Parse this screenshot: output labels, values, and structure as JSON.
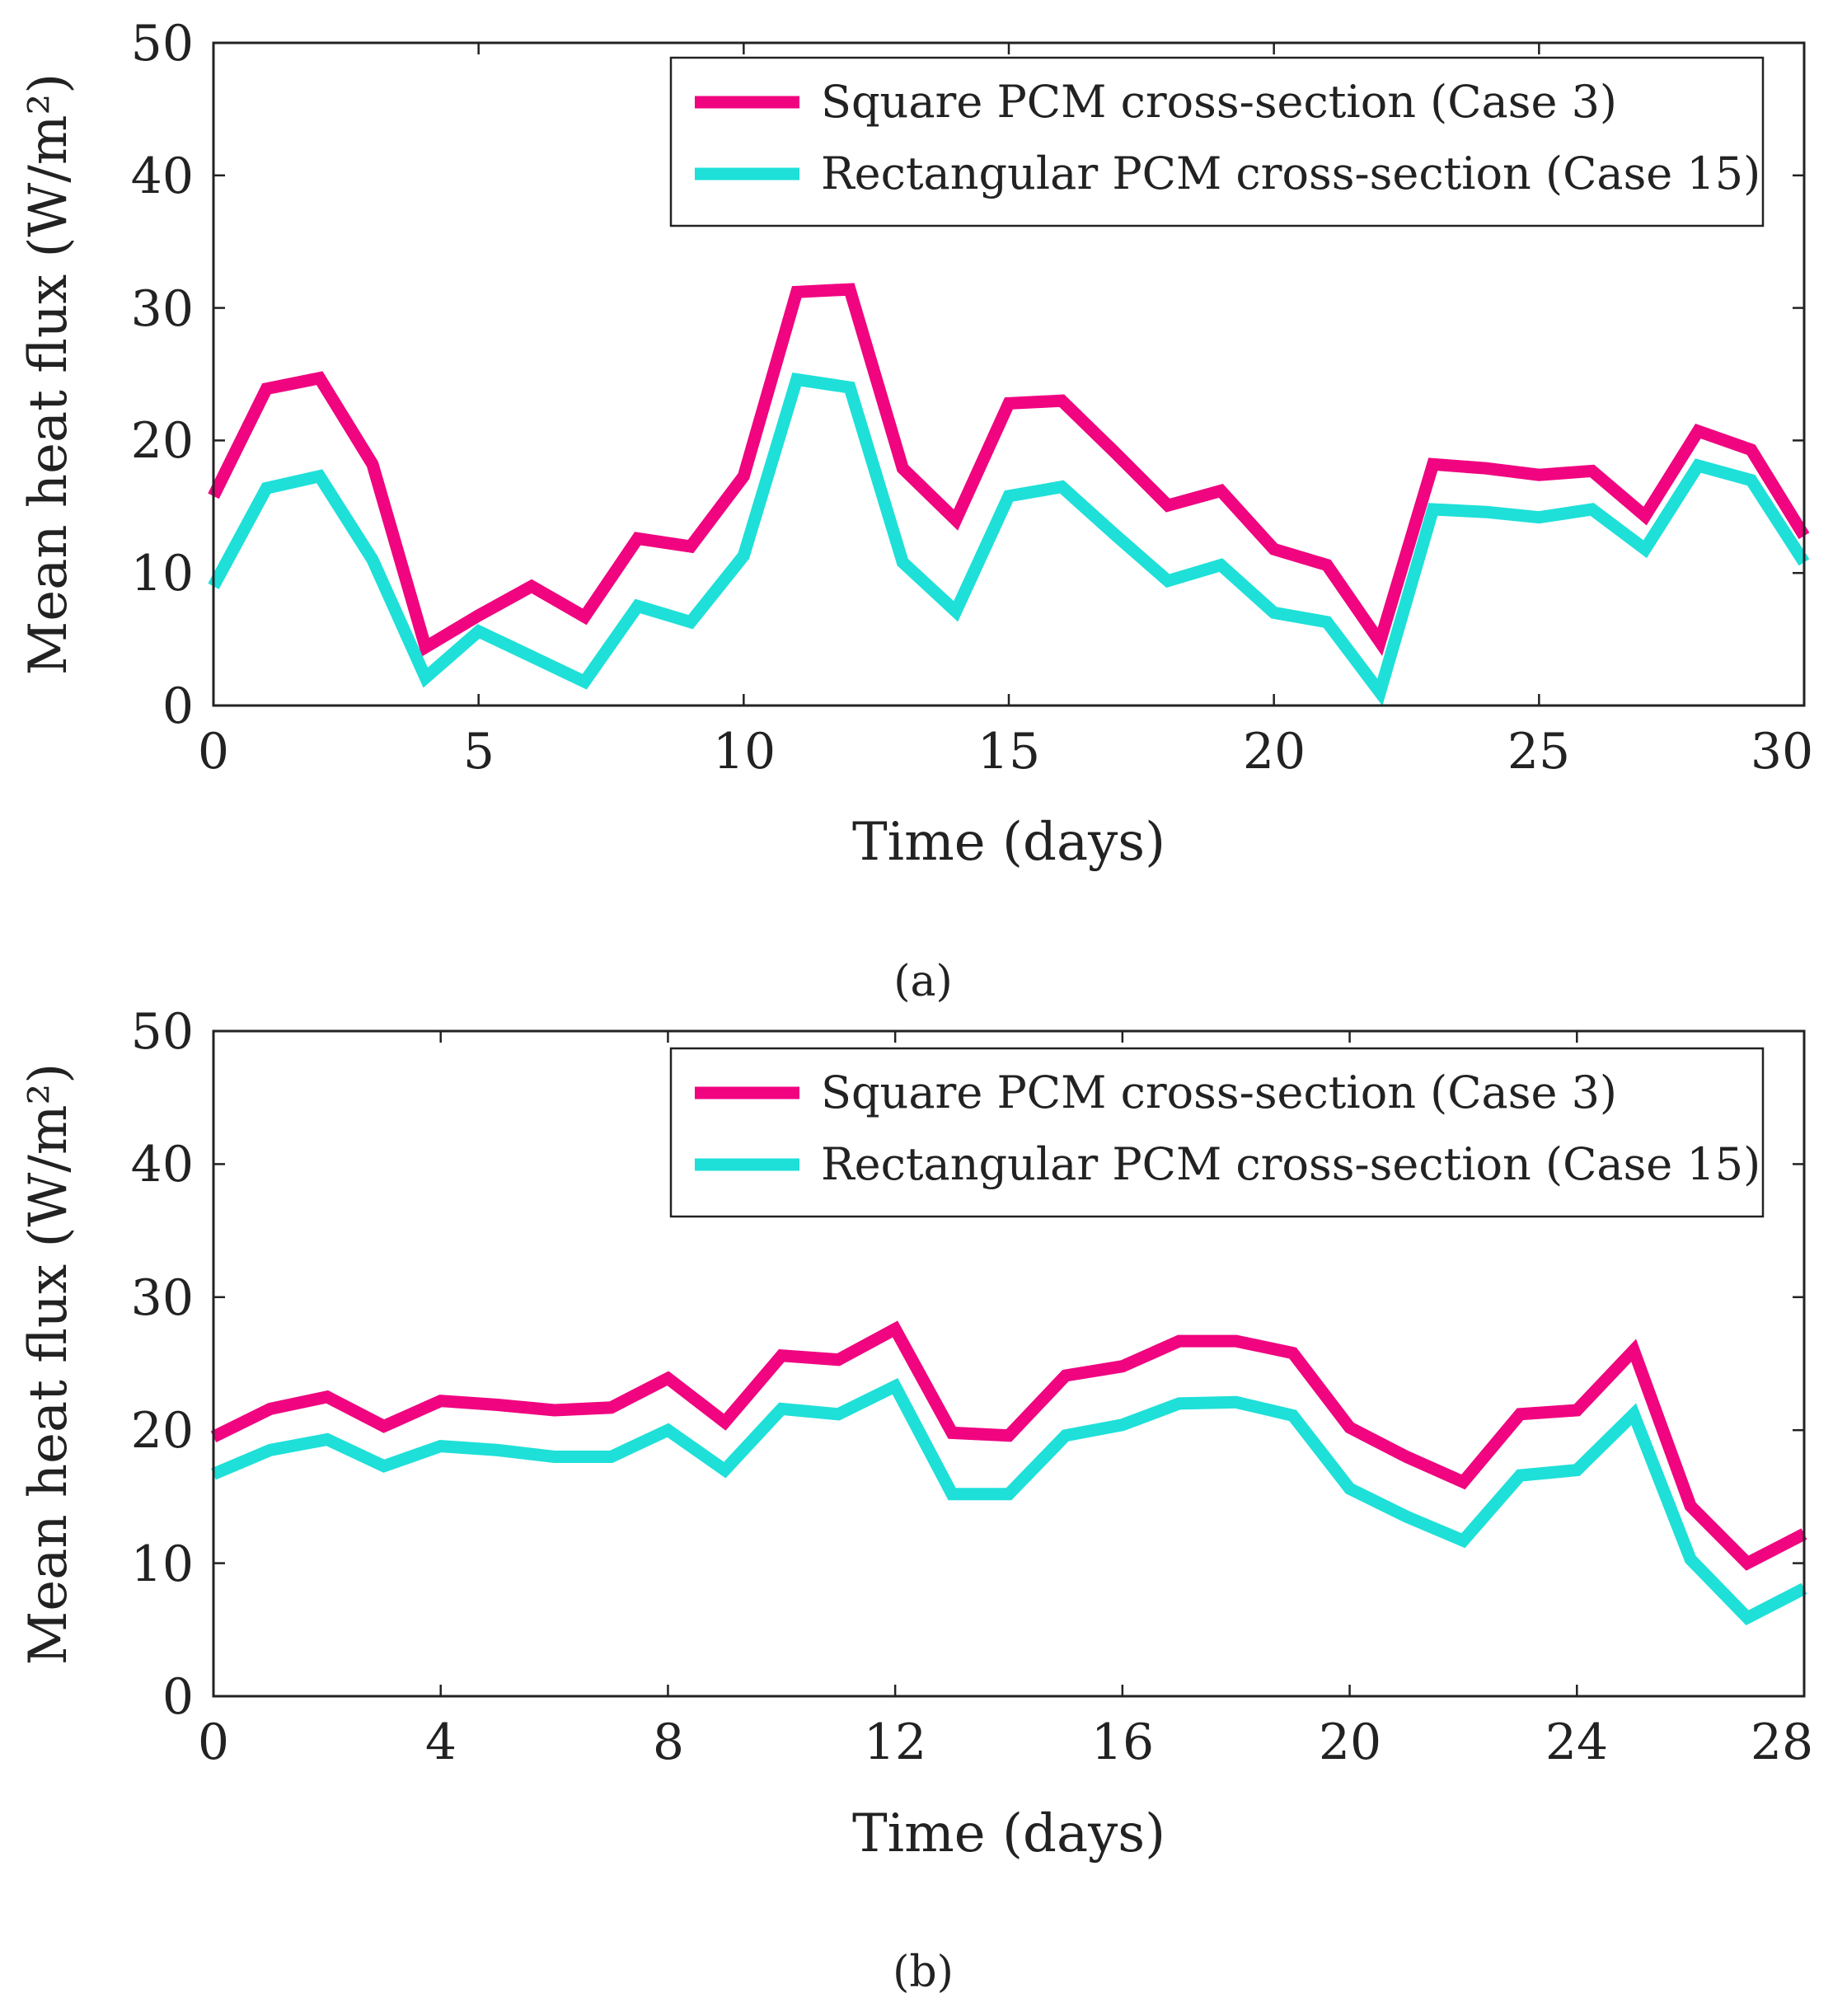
{
  "chart_data": [
    {
      "type": "line",
      "caption": "(a)",
      "xlabel": "Time (days)",
      "ylabel": "Mean heat flux (W/m²)",
      "xlim": [
        0,
        30
      ],
      "ylim": [
        0,
        50
      ],
      "xticks": [
        0,
        5,
        10,
        15,
        20,
        25,
        30
      ],
      "yticks": [
        0,
        10,
        20,
        30,
        40,
        50
      ],
      "xtick_labels": [
        "0",
        "5",
        "10",
        "15",
        "20",
        "25",
        "30"
      ],
      "ytick_labels": [
        "0",
        "10",
        "20",
        "30",
        "40",
        "50"
      ],
      "legend_position": "top-right",
      "x": [
        0,
        1,
        2,
        3,
        4,
        5,
        6,
        7,
        8,
        9,
        10,
        11,
        12,
        13,
        14,
        15,
        16,
        17,
        18,
        19,
        20,
        21,
        22,
        23,
        24,
        25,
        26,
        27,
        28,
        29,
        30
      ],
      "series": [
        {
          "name": "Square PCM cross-section (Case 3)",
          "color": "#f0047f",
          "values": [
            15.8,
            23.9,
            24.7,
            18.2,
            4.4,
            6.8,
            9.0,
            6.7,
            12.6,
            12.0,
            17.3,
            31.2,
            31.4,
            17.9,
            14.0,
            22.8,
            23.0,
            19.1,
            15.1,
            16.2,
            11.8,
            10.6,
            4.8,
            18.2,
            17.9,
            17.4,
            17.7,
            14.3,
            20.7,
            19.3,
            12.8
          ]
        },
        {
          "name": "Rectangular PCM cross-section (Case 15)",
          "color": "#1ee0d8",
          "values": [
            9.0,
            16.4,
            17.3,
            11.0,
            2.1,
            5.6,
            3.7,
            1.8,
            7.5,
            6.3,
            11.3,
            24.6,
            24.0,
            10.8,
            7.1,
            15.8,
            16.5,
            12.9,
            9.4,
            10.6,
            7.0,
            6.3,
            1.0,
            14.8,
            14.6,
            14.2,
            14.8,
            11.8,
            18.1,
            17.0,
            10.8
          ]
        }
      ]
    },
    {
      "type": "line",
      "caption": "(b)",
      "xlabel": "Time (days)",
      "ylabel": "Mean heat flux (W/m²)",
      "xlim": [
        0,
        28
      ],
      "ylim": [
        0,
        50
      ],
      "xticks": [
        0,
        4,
        8,
        12,
        16,
        20,
        24,
        28
      ],
      "yticks": [
        0,
        10,
        20,
        30,
        40,
        50
      ],
      "xtick_labels": [
        "0",
        "4",
        "8",
        "12",
        "16",
        "20",
        "24",
        "28"
      ],
      "ytick_labels": [
        "0",
        "10",
        "20",
        "30",
        "40",
        "50"
      ],
      "legend_position": "top-right",
      "x": [
        0,
        1,
        2,
        3,
        4,
        5,
        6,
        7,
        8,
        9,
        10,
        11,
        12,
        13,
        14,
        15,
        16,
        17,
        18,
        19,
        20,
        21,
        22,
        23,
        24,
        25,
        26,
        27,
        28
      ],
      "series": [
        {
          "name": "Square PCM cross-section (Case 3)",
          "color": "#f0047f",
          "values": [
            19.5,
            21.6,
            22.5,
            20.3,
            22.2,
            21.9,
            21.5,
            21.7,
            23.9,
            20.6,
            25.6,
            25.3,
            27.6,
            19.8,
            19.6,
            24.1,
            24.8,
            26.7,
            26.7,
            25.8,
            20.2,
            18.0,
            16.1,
            21.2,
            21.5,
            26.0,
            14.3,
            10.0,
            12.2
          ]
        },
        {
          "name": "Rectangular PCM cross-section (Case 15)",
          "color": "#1ee0d8",
          "values": [
            16.7,
            18.5,
            19.3,
            17.3,
            18.8,
            18.5,
            18.0,
            18.0,
            20.0,
            17.0,
            21.6,
            21.2,
            23.3,
            15.2,
            15.2,
            19.6,
            20.4,
            22.0,
            22.1,
            21.1,
            15.6,
            13.5,
            11.7,
            16.6,
            17.0,
            21.2,
            10.3,
            5.9,
            8.1
          ]
        }
      ]
    }
  ]
}
